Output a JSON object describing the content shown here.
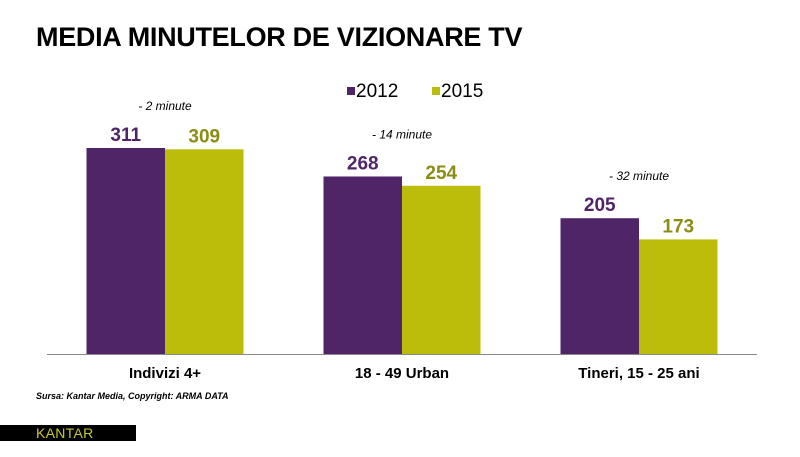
{
  "title": "MEDIA MINUTELOR DE VIZIONARE TV",
  "source": "Sursa: Kantar Media, Copyright: ARMA DATA",
  "logo": {
    "part1": "KANTAR",
    "part2": "MEDIA"
  },
  "chart_data": {
    "type": "bar",
    "categories": [
      "Indivizi 4+",
      "18 - 49 Urban",
      "Tineri, 15 - 25 ani"
    ],
    "series": [
      {
        "name": "2012",
        "values": [
          311,
          268,
          205
        ],
        "color": "#4f2568",
        "label_color": "#4f2568"
      },
      {
        "name": "2015",
        "values": [
          309,
          254,
          173
        ],
        "color": "#bcbc0a",
        "label_color": "#8c8c14"
      }
    ],
    "annotations": [
      "- 2 minute",
      "- 14 minute",
      "- 32 minute"
    ],
    "legend_position": "top-center",
    "grid": false,
    "ylim": [
      0,
      335
    ]
  }
}
